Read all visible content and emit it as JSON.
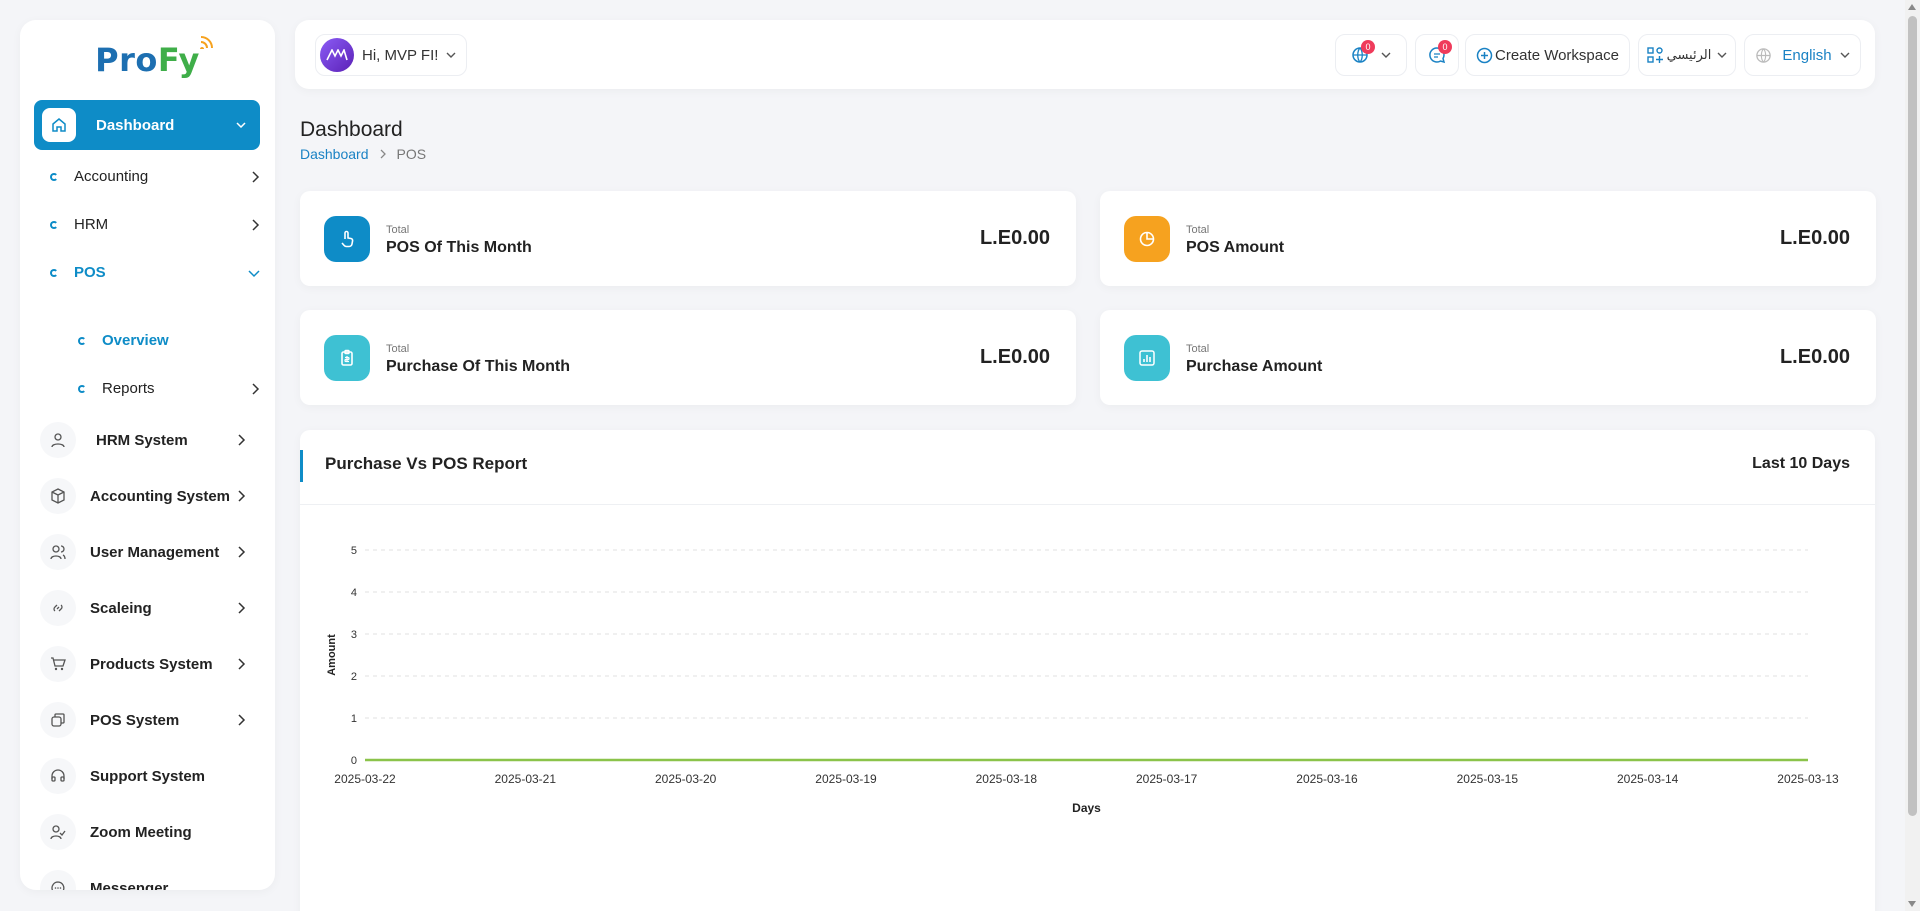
{
  "brand": {
    "pro": "Pro",
    "fy": "Fy"
  },
  "sidebar": {
    "active": {
      "label": "Dashboard"
    },
    "sub": [
      {
        "label": "Accounting"
      },
      {
        "label": "HRM"
      },
      {
        "label": "POS"
      }
    ],
    "subsub": [
      {
        "label": "Overview"
      },
      {
        "label": "Reports"
      }
    ],
    "systems": [
      {
        "label": "HRM System",
        "icon": "user-icon"
      },
      {
        "label": "Accounting System",
        "icon": "box-icon"
      },
      {
        "label": "User Management",
        "icon": "users-icon"
      },
      {
        "label": "Scaleing",
        "icon": "link-icon"
      },
      {
        "label": "Products System",
        "icon": "cart-icon"
      },
      {
        "label": "POS System",
        "icon": "pos-icon"
      },
      {
        "label": "Support System",
        "icon": "headset-icon"
      },
      {
        "label": "Zoom Meeting",
        "icon": "user-check-icon"
      },
      {
        "label": "Messenger",
        "icon": "chat-icon"
      }
    ]
  },
  "topbar": {
    "greeting": "Hi, MVP FI!",
    "globe_badge": "0",
    "chat_badge": "0",
    "create_workspace": "Create Workspace",
    "workspace_menu": "الرئيسي",
    "language": "English"
  },
  "page": {
    "title": "Dashboard",
    "breadcrumb": [
      "Dashboard",
      "POS"
    ]
  },
  "cards": [
    {
      "small": "Total",
      "name": "POS Of This Month",
      "value": "L.E0.00",
      "color": "#0e8cc7"
    },
    {
      "small": "Total",
      "name": "POS Amount",
      "value": "L.E0.00",
      "color": "#f6a21f"
    },
    {
      "small": "Total",
      "name": "Purchase Of This Month",
      "value": "L.E0.00",
      "color": "#3ec1d3"
    },
    {
      "small": "Total",
      "name": "Purchase Amount",
      "value": "L.E0.00",
      "color": "#3ec1d3"
    }
  ],
  "report": {
    "title": "Purchase Vs POS Report",
    "range": "Last 10 Days"
  },
  "chart_data": {
    "type": "line",
    "x": [
      "2025-03-22",
      "2025-03-21",
      "2025-03-20",
      "2025-03-19",
      "2025-03-18",
      "2025-03-17",
      "2025-03-16",
      "2025-03-15",
      "2025-03-14",
      "2025-03-13"
    ],
    "series": [
      {
        "values": [
          0,
          0,
          0,
          0,
          0,
          0,
          0,
          0,
          0,
          0
        ],
        "color": "#8bc34a"
      }
    ],
    "xlabel": "Days",
    "ylabel": "Amount",
    "yticks": [
      0,
      1,
      2,
      3,
      4,
      5
    ],
    "ylim": [
      0,
      5
    ],
    "grid": true
  }
}
